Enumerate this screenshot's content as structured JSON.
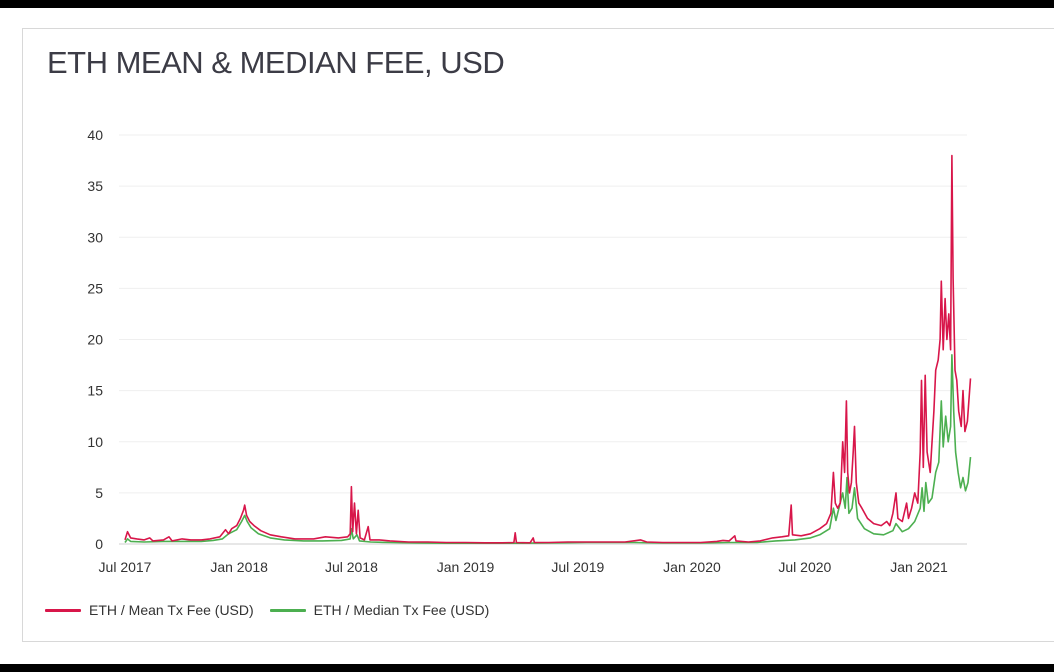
{
  "chart_data": {
    "type": "line",
    "title": "ETH MEAN & MEDIAN FEE, USD",
    "xlabel": "",
    "ylabel": "",
    "ylim": [
      0,
      40
    ],
    "y_ticks": [
      0,
      5,
      10,
      15,
      20,
      25,
      30,
      35,
      40
    ],
    "x_range": [
      "2017-07-01",
      "2021-04-05"
    ],
    "x_ticks": [
      {
        "date": "2017-07-01",
        "label": "Jul 2017"
      },
      {
        "date": "2018-01-01",
        "label": "Jan 2018"
      },
      {
        "date": "2018-07-01",
        "label": "Jul 2018"
      },
      {
        "date": "2019-01-01",
        "label": "Jan 2019"
      },
      {
        "date": "2019-07-01",
        "label": "Jul 2019"
      },
      {
        "date": "2020-01-01",
        "label": "Jan 2020"
      },
      {
        "date": "2020-07-01",
        "label": "Jul 2020"
      },
      {
        "date": "2021-01-01",
        "label": "Jan 2021"
      }
    ],
    "grid": true,
    "legend_position": "bottom-left",
    "series": [
      {
        "name": "ETH / Mean Tx Fee (USD)",
        "color": "#d8164a",
        "points": [
          [
            "2017-07-01",
            0.4
          ],
          [
            "2017-07-05",
            1.2
          ],
          [
            "2017-07-10",
            0.6
          ],
          [
            "2017-07-20",
            0.5
          ],
          [
            "2017-08-01",
            0.4
          ],
          [
            "2017-08-10",
            0.6
          ],
          [
            "2017-08-15",
            0.3
          ],
          [
            "2017-09-01",
            0.4
          ],
          [
            "2017-09-10",
            0.7
          ],
          [
            "2017-09-15",
            0.3
          ],
          [
            "2017-10-01",
            0.5
          ],
          [
            "2017-10-15",
            0.4
          ],
          [
            "2017-11-01",
            0.4
          ],
          [
            "2017-11-15",
            0.5
          ],
          [
            "2017-12-01",
            0.7
          ],
          [
            "2017-12-10",
            1.4
          ],
          [
            "2017-12-15",
            1.0
          ],
          [
            "2017-12-20",
            1.5
          ],
          [
            "2017-12-28",
            1.8
          ],
          [
            "2018-01-03",
            2.5
          ],
          [
            "2018-01-08",
            3.3
          ],
          [
            "2018-01-10",
            3.8
          ],
          [
            "2018-01-13",
            2.8
          ],
          [
            "2018-01-18",
            2.2
          ],
          [
            "2018-01-25",
            1.8
          ],
          [
            "2018-02-05",
            1.3
          ],
          [
            "2018-02-20",
            0.9
          ],
          [
            "2018-03-10",
            0.7
          ],
          [
            "2018-04-01",
            0.5
          ],
          [
            "2018-05-01",
            0.5
          ],
          [
            "2018-05-20",
            0.7
          ],
          [
            "2018-06-10",
            0.6
          ],
          [
            "2018-06-25",
            0.7
          ],
          [
            "2018-06-29",
            1.0
          ],
          [
            "2018-07-01",
            5.6
          ],
          [
            "2018-07-03",
            1.2
          ],
          [
            "2018-07-06",
            4.0
          ],
          [
            "2018-07-09",
            1.0
          ],
          [
            "2018-07-12",
            3.3
          ],
          [
            "2018-07-15",
            0.6
          ],
          [
            "2018-07-22",
            0.4
          ],
          [
            "2018-07-28",
            1.7
          ],
          [
            "2018-07-31",
            0.4
          ],
          [
            "2018-08-15",
            0.4
          ],
          [
            "2018-09-01",
            0.3
          ],
          [
            "2018-10-01",
            0.2
          ],
          [
            "2018-11-01",
            0.2
          ],
          [
            "2018-12-01",
            0.15
          ],
          [
            "2019-01-01",
            0.15
          ],
          [
            "2019-02-01",
            0.12
          ],
          [
            "2019-03-01",
            0.12
          ],
          [
            "2019-03-20",
            0.15
          ],
          [
            "2019-03-22",
            1.1
          ],
          [
            "2019-03-24",
            0.15
          ],
          [
            "2019-04-15",
            0.12
          ],
          [
            "2019-04-20",
            0.6
          ],
          [
            "2019-04-22",
            0.15
          ],
          [
            "2019-05-15",
            0.15
          ],
          [
            "2019-06-15",
            0.2
          ],
          [
            "2019-07-15",
            0.2
          ],
          [
            "2019-08-15",
            0.2
          ],
          [
            "2019-09-15",
            0.2
          ],
          [
            "2019-10-10",
            0.4
          ],
          [
            "2019-10-20",
            0.2
          ],
          [
            "2019-11-15",
            0.15
          ],
          [
            "2019-12-15",
            0.15
          ],
          [
            "2020-01-15",
            0.15
          ],
          [
            "2020-02-10",
            0.25
          ],
          [
            "2020-02-20",
            0.35
          ],
          [
            "2020-03-01",
            0.3
          ],
          [
            "2020-03-10",
            0.8
          ],
          [
            "2020-03-12",
            0.3
          ],
          [
            "2020-04-01",
            0.2
          ],
          [
            "2020-04-20",
            0.3
          ],
          [
            "2020-05-10",
            0.6
          ],
          [
            "2020-05-25",
            0.7
          ],
          [
            "2020-06-05",
            0.8
          ],
          [
            "2020-06-09",
            3.8
          ],
          [
            "2020-06-11",
            0.9
          ],
          [
            "2020-06-25",
            0.8
          ],
          [
            "2020-07-10",
            1.0
          ],
          [
            "2020-07-25",
            1.5
          ],
          [
            "2020-08-05",
            2.0
          ],
          [
            "2020-08-12",
            3.0
          ],
          [
            "2020-08-16",
            7.0
          ],
          [
            "2020-08-19",
            4.0
          ],
          [
            "2020-08-23",
            3.5
          ],
          [
            "2020-08-27",
            4.0
          ],
          [
            "2020-08-31",
            10.0
          ],
          [
            "2020-09-03",
            7.0
          ],
          [
            "2020-09-06",
            14.0
          ],
          [
            "2020-09-08",
            7.0
          ],
          [
            "2020-09-11",
            5.0
          ],
          [
            "2020-09-14",
            6.0
          ],
          [
            "2020-09-17",
            9.0
          ],
          [
            "2020-09-19",
            11.5
          ],
          [
            "2020-09-22",
            6.0
          ],
          [
            "2020-09-26",
            4.0
          ],
          [
            "2020-10-01",
            3.5
          ],
          [
            "2020-10-10",
            2.5
          ],
          [
            "2020-10-20",
            2.0
          ],
          [
            "2020-11-01",
            1.8
          ],
          [
            "2020-11-10",
            2.2
          ],
          [
            "2020-11-15",
            1.8
          ],
          [
            "2020-11-20",
            3.0
          ],
          [
            "2020-11-25",
            5.0
          ],
          [
            "2020-11-28",
            2.5
          ],
          [
            "2020-12-05",
            2.2
          ],
          [
            "2020-12-12",
            4.0
          ],
          [
            "2020-12-15",
            2.5
          ],
          [
            "2020-12-20",
            3.5
          ],
          [
            "2020-12-25",
            5.0
          ],
          [
            "2020-12-30",
            4.0
          ],
          [
            "2021-01-03",
            9.0
          ],
          [
            "2021-01-05",
            16.0
          ],
          [
            "2021-01-08",
            7.5
          ],
          [
            "2021-01-11",
            16.5
          ],
          [
            "2021-01-14",
            9.0
          ],
          [
            "2021-01-19",
            7.0
          ],
          [
            "2021-01-25",
            13.0
          ],
          [
            "2021-01-28",
            17.0
          ],
          [
            "2021-02-01",
            18.0
          ],
          [
            "2021-02-04",
            20.0
          ],
          [
            "2021-02-06",
            25.7
          ],
          [
            "2021-02-09",
            19.0
          ],
          [
            "2021-02-12",
            24.0
          ],
          [
            "2021-02-15",
            20.0
          ],
          [
            "2021-02-18",
            22.5
          ],
          [
            "2021-02-21",
            19.0
          ],
          [
            "2021-02-23",
            38.0
          ],
          [
            "2021-02-25",
            26.0
          ],
          [
            "2021-02-28",
            17.0
          ],
          [
            "2021-03-03",
            16.0
          ],
          [
            "2021-03-06",
            13.0
          ],
          [
            "2021-03-10",
            11.5
          ],
          [
            "2021-03-13",
            15.0
          ],
          [
            "2021-03-16",
            11.0
          ],
          [
            "2021-03-20",
            12.0
          ],
          [
            "2021-03-25",
            16.2
          ]
        ]
      },
      {
        "name": "ETH / Median Tx Fee (USD)",
        "color": "#4caf50",
        "points": [
          [
            "2017-07-01",
            0.15
          ],
          [
            "2017-07-05",
            0.5
          ],
          [
            "2017-07-10",
            0.25
          ],
          [
            "2017-08-01",
            0.2
          ],
          [
            "2017-09-01",
            0.25
          ],
          [
            "2017-10-01",
            0.25
          ],
          [
            "2017-11-01",
            0.25
          ],
          [
            "2017-11-20",
            0.35
          ],
          [
            "2017-12-05",
            0.5
          ],
          [
            "2017-12-15",
            1.0
          ],
          [
            "2017-12-28",
            1.4
          ],
          [
            "2018-01-05",
            2.2
          ],
          [
            "2018-01-10",
            2.8
          ],
          [
            "2018-01-14",
            2.2
          ],
          [
            "2018-01-20",
            1.6
          ],
          [
            "2018-02-01",
            1.0
          ],
          [
            "2018-02-20",
            0.6
          ],
          [
            "2018-03-15",
            0.4
          ],
          [
            "2018-04-15",
            0.3
          ],
          [
            "2018-05-15",
            0.3
          ],
          [
            "2018-06-15",
            0.35
          ],
          [
            "2018-06-29",
            0.5
          ],
          [
            "2018-07-01",
            1.5
          ],
          [
            "2018-07-04",
            0.5
          ],
          [
            "2018-07-10",
            0.9
          ],
          [
            "2018-07-14",
            0.3
          ],
          [
            "2018-08-01",
            0.2
          ],
          [
            "2018-09-01",
            0.15
          ],
          [
            "2018-10-15",
            0.1
          ],
          [
            "2018-12-01",
            0.08
          ],
          [
            "2019-02-01",
            0.08
          ],
          [
            "2019-04-01",
            0.08
          ],
          [
            "2019-06-01",
            0.12
          ],
          [
            "2019-07-15",
            0.15
          ],
          [
            "2019-08-15",
            0.15
          ],
          [
            "2019-10-01",
            0.15
          ],
          [
            "2019-11-15",
            0.1
          ],
          [
            "2020-01-15",
            0.1
          ],
          [
            "2020-03-01",
            0.15
          ],
          [
            "2020-04-15",
            0.15
          ],
          [
            "2020-05-15",
            0.3
          ],
          [
            "2020-06-15",
            0.4
          ],
          [
            "2020-07-10",
            0.6
          ],
          [
            "2020-07-25",
            0.9
          ],
          [
            "2020-08-10",
            1.5
          ],
          [
            "2020-08-16",
            3.5
          ],
          [
            "2020-08-20",
            2.3
          ],
          [
            "2020-08-31",
            5.0
          ],
          [
            "2020-09-04",
            3.5
          ],
          [
            "2020-09-07",
            6.5
          ],
          [
            "2020-09-10",
            3.0
          ],
          [
            "2020-09-15",
            3.5
          ],
          [
            "2020-09-19",
            5.5
          ],
          [
            "2020-09-24",
            2.5
          ],
          [
            "2020-10-05",
            1.5
          ],
          [
            "2020-10-20",
            1.0
          ],
          [
            "2020-11-05",
            0.9
          ],
          [
            "2020-11-20",
            1.3
          ],
          [
            "2020-11-25",
            2.0
          ],
          [
            "2020-12-05",
            1.2
          ],
          [
            "2020-12-15",
            1.5
          ],
          [
            "2020-12-25",
            2.2
          ],
          [
            "2021-01-03",
            3.5
          ],
          [
            "2021-01-06",
            5.5
          ],
          [
            "2021-01-09",
            3.2
          ],
          [
            "2021-01-12",
            6.0
          ],
          [
            "2021-01-16",
            4.0
          ],
          [
            "2021-01-22",
            4.5
          ],
          [
            "2021-01-28",
            7.0
          ],
          [
            "2021-02-02",
            8.0
          ],
          [
            "2021-02-06",
            14.0
          ],
          [
            "2021-02-09",
            9.5
          ],
          [
            "2021-02-13",
            12.5
          ],
          [
            "2021-02-17",
            10.0
          ],
          [
            "2021-02-21",
            11.5
          ],
          [
            "2021-02-23",
            18.5
          ],
          [
            "2021-02-26",
            13.0
          ],
          [
            "2021-03-01",
            9.0
          ],
          [
            "2021-03-05",
            7.0
          ],
          [
            "2021-03-09",
            5.5
          ],
          [
            "2021-03-13",
            6.5
          ],
          [
            "2021-03-17",
            5.2
          ],
          [
            "2021-03-21",
            6.0
          ],
          [
            "2021-03-25",
            8.5
          ]
        ]
      }
    ]
  }
}
